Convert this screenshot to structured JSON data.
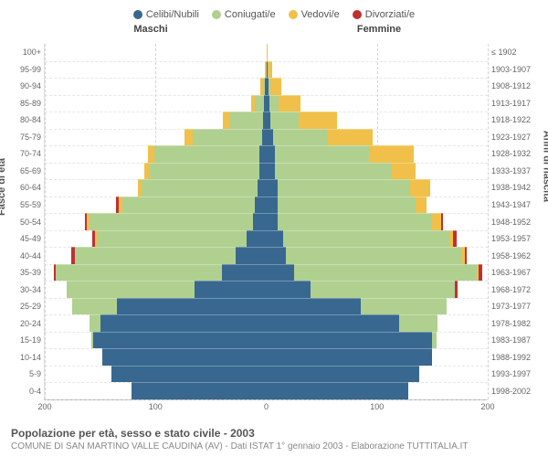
{
  "legend": [
    {
      "label": "Celibi/Nubili",
      "color": "#386890"
    },
    {
      "label": "Coniugati/e",
      "color": "#b0d090"
    },
    {
      "label": "Vedovi/e",
      "color": "#f0c04a"
    },
    {
      "label": "Divorziati/e",
      "color": "#c03030"
    }
  ],
  "header_left": "Maschi",
  "header_right": "Femmine",
  "axis_left_title": "Fasce di età",
  "axis_right_title": "Anni di nascita",
  "x_ticks": [
    200,
    100,
    0,
    100,
    200
  ],
  "x_max": 200,
  "title": "Popolazione per età, sesso e stato civile - 2003",
  "subtitle": "COMUNE DI SAN MARTINO VALLE CAUDINA (AV) - Dati ISTAT 1° gennaio 2003 - Elaborazione TUTTITALIA.IT",
  "grid_color": "#e0e0e0",
  "background_color": "#ffffff",
  "rows": [
    {
      "age": "0-4",
      "year": "1998-2002",
      "m": {
        "s": 122,
        "m": 0,
        "w": 0,
        "d": 0
      },
      "f": {
        "s": 128,
        "m": 0,
        "w": 0,
        "d": 0
      }
    },
    {
      "age": "5-9",
      "year": "1993-1997",
      "m": {
        "s": 140,
        "m": 0,
        "w": 0,
        "d": 0
      },
      "f": {
        "s": 138,
        "m": 0,
        "w": 0,
        "d": 0
      }
    },
    {
      "age": "10-14",
      "year": "1988-1992",
      "m": {
        "s": 148,
        "m": 0,
        "w": 0,
        "d": 0
      },
      "f": {
        "s": 150,
        "m": 0,
        "w": 0,
        "d": 0
      }
    },
    {
      "age": "15-19",
      "year": "1983-1987",
      "m": {
        "s": 156,
        "m": 2,
        "w": 0,
        "d": 0
      },
      "f": {
        "s": 150,
        "m": 4,
        "w": 0,
        "d": 0
      }
    },
    {
      "age": "20-24",
      "year": "1978-1982",
      "m": {
        "s": 150,
        "m": 10,
        "w": 0,
        "d": 0
      },
      "f": {
        "s": 120,
        "m": 35,
        "w": 0,
        "d": 0
      }
    },
    {
      "age": "25-29",
      "year": "1973-1977",
      "m": {
        "s": 135,
        "m": 40,
        "w": 0,
        "d": 0
      },
      "f": {
        "s": 85,
        "m": 78,
        "w": 0,
        "d": 0
      }
    },
    {
      "age": "30-34",
      "year": "1968-1972",
      "m": {
        "s": 65,
        "m": 115,
        "w": 0,
        "d": 0
      },
      "f": {
        "s": 40,
        "m": 130,
        "w": 0,
        "d": 3
      }
    },
    {
      "age": "35-39",
      "year": "1963-1967",
      "m": {
        "s": 40,
        "m": 150,
        "w": 0,
        "d": 2
      },
      "f": {
        "s": 25,
        "m": 165,
        "w": 2,
        "d": 3
      }
    },
    {
      "age": "40-44",
      "year": "1958-1962",
      "m": {
        "s": 28,
        "m": 145,
        "w": 0,
        "d": 3
      },
      "f": {
        "s": 18,
        "m": 158,
        "w": 3,
        "d": 2
      }
    },
    {
      "age": "45-49",
      "year": "1953-1957",
      "m": {
        "s": 18,
        "m": 135,
        "w": 2,
        "d": 2
      },
      "f": {
        "s": 15,
        "m": 150,
        "w": 4,
        "d": 3
      }
    },
    {
      "age": "50-54",
      "year": "1948-1952",
      "m": {
        "s": 12,
        "m": 148,
        "w": 2,
        "d": 2
      },
      "f": {
        "s": 10,
        "m": 140,
        "w": 8,
        "d": 2
      }
    },
    {
      "age": "55-59",
      "year": "1943-1947",
      "m": {
        "s": 10,
        "m": 120,
        "w": 3,
        "d": 3
      },
      "f": {
        "s": 10,
        "m": 125,
        "w": 10,
        "d": 0
      }
    },
    {
      "age": "60-64",
      "year": "1938-1942",
      "m": {
        "s": 8,
        "m": 105,
        "w": 3,
        "d": 0
      },
      "f": {
        "s": 10,
        "m": 120,
        "w": 18,
        "d": 0
      }
    },
    {
      "age": "65-69",
      "year": "1933-1937",
      "m": {
        "s": 6,
        "m": 100,
        "w": 4,
        "d": 0
      },
      "f": {
        "s": 8,
        "m": 105,
        "w": 22,
        "d": 0
      }
    },
    {
      "age": "70-74",
      "year": "1928-1932",
      "m": {
        "s": 6,
        "m": 95,
        "w": 6,
        "d": 0
      },
      "f": {
        "s": 8,
        "m": 85,
        "w": 40,
        "d": 0
      }
    },
    {
      "age": "75-79",
      "year": "1923-1927",
      "m": {
        "s": 4,
        "m": 62,
        "w": 8,
        "d": 0
      },
      "f": {
        "s": 6,
        "m": 50,
        "w": 40,
        "d": 0
      }
    },
    {
      "age": "80-84",
      "year": "1918-1922",
      "m": {
        "s": 3,
        "m": 30,
        "w": 6,
        "d": 0
      },
      "f": {
        "s": 4,
        "m": 25,
        "w": 35,
        "d": 0
      }
    },
    {
      "age": "85-89",
      "year": "1913-1917",
      "m": {
        "s": 2,
        "m": 8,
        "w": 4,
        "d": 0
      },
      "f": {
        "s": 3,
        "m": 8,
        "w": 20,
        "d": 0
      }
    },
    {
      "age": "90-94",
      "year": "1908-1912",
      "m": {
        "s": 1,
        "m": 2,
        "w": 2,
        "d": 0
      },
      "f": {
        "s": 2,
        "m": 2,
        "w": 10,
        "d": 0
      }
    },
    {
      "age": "95-99",
      "year": "1903-1907",
      "m": {
        "s": 0,
        "m": 0,
        "w": 1,
        "d": 0
      },
      "f": {
        "s": 1,
        "m": 1,
        "w": 3,
        "d": 0
      }
    },
    {
      "age": "100+",
      "year": "≤ 1902",
      "m": {
        "s": 0,
        "m": 0,
        "w": 0,
        "d": 0
      },
      "f": {
        "s": 0,
        "m": 0,
        "w": 1,
        "d": 0
      }
    }
  ]
}
